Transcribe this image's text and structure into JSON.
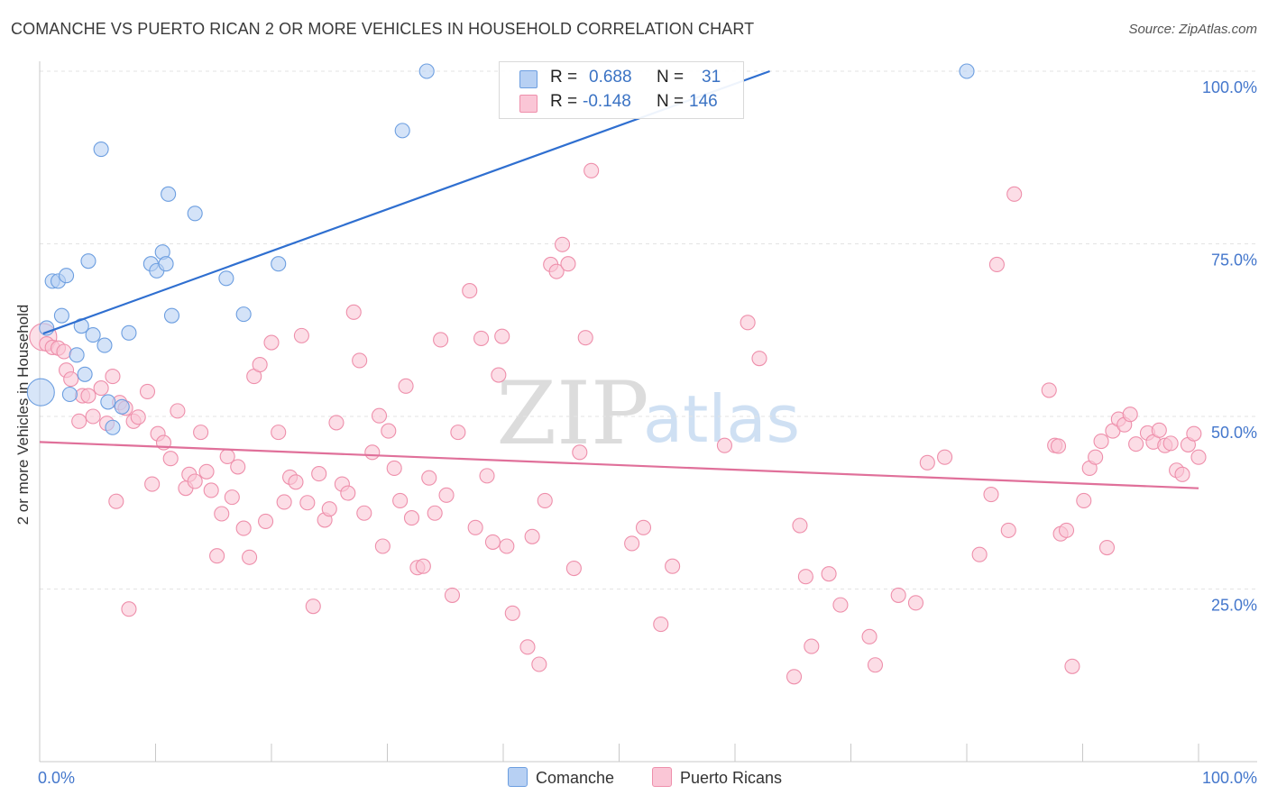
{
  "header": {
    "title": "COMANCHE VS PUERTO RICAN 2 OR MORE VEHICLES IN HOUSEHOLD CORRELATION CHART",
    "source": "Source: ZipAtlas.com"
  },
  "watermark": {
    "zip": "ZIP",
    "atlas": "atlas"
  },
  "stats_box": {
    "rows": [
      {
        "r_label": "R =",
        "r_value": "0.688",
        "n_label": "N =",
        "n_value": "31",
        "color": "#6c9ee0"
      },
      {
        "r_label": "R =",
        "r_value": "-0.148",
        "n_label": "N =",
        "n_value": "146",
        "color": "#ee8fab"
      }
    ]
  },
  "legend": {
    "items": [
      "Comanche",
      "Puerto Ricans"
    ]
  },
  "colors": {
    "comanche_fill": "#b7d0f3",
    "comanche_stroke": "#6c9ee0",
    "comanche_line": "#2f6fd0",
    "pr_fill": "#fac6d6",
    "pr_stroke": "#ee8fab",
    "pr_line": "#e0709a",
    "tick_label": "#4477cc",
    "grid": "#e3e3e3"
  },
  "chart_data": {
    "type": "scatter",
    "title": "COMANCHE VS PUERTO RICAN 2 OR MORE VEHICLES IN HOUSEHOLD CORRELATION CHART",
    "xlabel": "",
    "ylabel": "2 or more Vehicles in Household",
    "xlim": [
      0,
      100
    ],
    "ylim": [
      0,
      100
    ],
    "x_tick_labels": [
      "0.0%",
      "100.0%"
    ],
    "y_ticks": [
      25,
      50,
      75,
      100
    ],
    "y_tick_labels": [
      "25.0%",
      "50.0%",
      "75.0%",
      "100.0%"
    ],
    "grid": true,
    "legend_position": "bottom-center",
    "series": [
      {
        "name": "Comanche",
        "R": 0.688,
        "N": 31,
        "trend": {
          "x": [
            0.3,
            63
          ],
          "y": [
            62,
            100
          ]
        },
        "points": [
          {
            "x": 0.1,
            "y": 53.5,
            "big": true
          },
          {
            "x": 0.6,
            "y": 62.8
          },
          {
            "x": 1.1,
            "y": 69.6
          },
          {
            "x": 1.6,
            "y": 69.6
          },
          {
            "x": 1.9,
            "y": 64.6
          },
          {
            "x": 2.3,
            "y": 70.4
          },
          {
            "x": 2.6,
            "y": 53.2
          },
          {
            "x": 3.2,
            "y": 58.9
          },
          {
            "x": 3.6,
            "y": 63.1
          },
          {
            "x": 3.9,
            "y": 56.1
          },
          {
            "x": 4.2,
            "y": 72.5
          },
          {
            "x": 4.6,
            "y": 61.8
          },
          {
            "x": 5.3,
            "y": 88.7
          },
          {
            "x": 5.6,
            "y": 60.3
          },
          {
            "x": 5.9,
            "y": 52.1
          },
          {
            "x": 6.3,
            "y": 48.4
          },
          {
            "x": 7.1,
            "y": 51.4
          },
          {
            "x": 7.7,
            "y": 62.1
          },
          {
            "x": 9.6,
            "y": 72.1
          },
          {
            "x": 10.1,
            "y": 71.1
          },
          {
            "x": 10.6,
            "y": 73.8
          },
          {
            "x": 10.9,
            "y": 72.1
          },
          {
            "x": 11.1,
            "y": 82.2
          },
          {
            "x": 11.4,
            "y": 64.6
          },
          {
            "x": 13.4,
            "y": 79.4
          },
          {
            "x": 16.1,
            "y": 70.0
          },
          {
            "x": 17.6,
            "y": 64.8
          },
          {
            "x": 20.6,
            "y": 72.1
          },
          {
            "x": 31.3,
            "y": 91.4
          },
          {
            "x": 33.4,
            "y": 100.0
          },
          {
            "x": 80.0,
            "y": 100.0
          }
        ]
      },
      {
        "name": "Puerto Ricans",
        "R": -0.148,
        "N": 146,
        "trend": {
          "x": [
            0,
            100
          ],
          "y": [
            46.3,
            39.6
          ]
        },
        "points": [
          {
            "x": 0.3,
            "y": 61.5,
            "big": true
          },
          {
            "x": 0.6,
            "y": 60.5
          },
          {
            "x": 1.1,
            "y": 60.0
          },
          {
            "x": 1.6,
            "y": 59.9
          },
          {
            "x": 2.1,
            "y": 59.4
          },
          {
            "x": 2.3,
            "y": 56.7
          },
          {
            "x": 2.7,
            "y": 55.4
          },
          {
            "x": 3.4,
            "y": 49.3
          },
          {
            "x": 3.7,
            "y": 53.0
          },
          {
            "x": 4.2,
            "y": 53.0
          },
          {
            "x": 4.6,
            "y": 50.0
          },
          {
            "x": 5.3,
            "y": 54.1
          },
          {
            "x": 5.8,
            "y": 49.0
          },
          {
            "x": 6.3,
            "y": 55.8
          },
          {
            "x": 6.6,
            "y": 37.7
          },
          {
            "x": 6.9,
            "y": 52.0
          },
          {
            "x": 7.4,
            "y": 51.2
          },
          {
            "x": 7.7,
            "y": 22.1
          },
          {
            "x": 8.1,
            "y": 49.3
          },
          {
            "x": 8.5,
            "y": 49.9
          },
          {
            "x": 9.3,
            "y": 53.6
          },
          {
            "x": 9.7,
            "y": 40.2
          },
          {
            "x": 10.2,
            "y": 47.5
          },
          {
            "x": 10.7,
            "y": 46.2
          },
          {
            "x": 11.3,
            "y": 43.9
          },
          {
            "x": 11.9,
            "y": 50.8
          },
          {
            "x": 12.6,
            "y": 39.6
          },
          {
            "x": 12.9,
            "y": 41.6
          },
          {
            "x": 13.4,
            "y": 40.6
          },
          {
            "x": 13.9,
            "y": 47.7
          },
          {
            "x": 14.4,
            "y": 42.0
          },
          {
            "x": 14.8,
            "y": 39.3
          },
          {
            "x": 15.3,
            "y": 29.8
          },
          {
            "x": 15.7,
            "y": 35.9
          },
          {
            "x": 16.2,
            "y": 44.2
          },
          {
            "x": 16.6,
            "y": 38.3
          },
          {
            "x": 17.1,
            "y": 42.7
          },
          {
            "x": 17.6,
            "y": 33.8
          },
          {
            "x": 18.1,
            "y": 29.6
          },
          {
            "x": 18.5,
            "y": 55.8
          },
          {
            "x": 19.0,
            "y": 57.5
          },
          {
            "x": 19.5,
            "y": 34.8
          },
          {
            "x": 20.0,
            "y": 60.7
          },
          {
            "x": 20.6,
            "y": 47.7
          },
          {
            "x": 21.1,
            "y": 37.6
          },
          {
            "x": 21.6,
            "y": 41.2
          },
          {
            "x": 22.1,
            "y": 40.5
          },
          {
            "x": 22.6,
            "y": 61.7
          },
          {
            "x": 23.1,
            "y": 37.5
          },
          {
            "x": 23.6,
            "y": 22.5
          },
          {
            "x": 24.1,
            "y": 41.7
          },
          {
            "x": 24.6,
            "y": 35.0
          },
          {
            "x": 25.0,
            "y": 36.6
          },
          {
            "x": 25.6,
            "y": 49.1
          },
          {
            "x": 26.1,
            "y": 40.2
          },
          {
            "x": 26.6,
            "y": 38.9
          },
          {
            "x": 27.1,
            "y": 65.1
          },
          {
            "x": 27.6,
            "y": 58.1
          },
          {
            "x": 28.0,
            "y": 36.0
          },
          {
            "x": 28.7,
            "y": 44.8
          },
          {
            "x": 29.3,
            "y": 50.1
          },
          {
            "x": 29.6,
            "y": 31.2
          },
          {
            "x": 30.1,
            "y": 47.9
          },
          {
            "x": 30.6,
            "y": 42.5
          },
          {
            "x": 31.1,
            "y": 37.8
          },
          {
            "x": 31.6,
            "y": 54.4
          },
          {
            "x": 32.1,
            "y": 35.3
          },
          {
            "x": 32.6,
            "y": 28.1
          },
          {
            "x": 33.1,
            "y": 28.3
          },
          {
            "x": 33.6,
            "y": 41.1
          },
          {
            "x": 34.1,
            "y": 36.0
          },
          {
            "x": 34.6,
            "y": 61.1
          },
          {
            "x": 35.1,
            "y": 38.6
          },
          {
            "x": 35.6,
            "y": 24.1
          },
          {
            "x": 36.1,
            "y": 47.7
          },
          {
            "x": 37.1,
            "y": 68.2
          },
          {
            "x": 37.6,
            "y": 33.9
          },
          {
            "x": 38.1,
            "y": 61.3
          },
          {
            "x": 38.6,
            "y": 41.4
          },
          {
            "x": 39.1,
            "y": 31.8
          },
          {
            "x": 39.6,
            "y": 56.0
          },
          {
            "x": 39.9,
            "y": 61.6
          },
          {
            "x": 40.3,
            "y": 31.2
          },
          {
            "x": 40.8,
            "y": 21.5
          },
          {
            "x": 42.1,
            "y": 16.6
          },
          {
            "x": 42.5,
            "y": 32.6
          },
          {
            "x": 43.1,
            "y": 14.1
          },
          {
            "x": 43.6,
            "y": 37.8
          },
          {
            "x": 44.1,
            "y": 72.0
          },
          {
            "x": 44.6,
            "y": 71.0
          },
          {
            "x": 45.1,
            "y": 74.9
          },
          {
            "x": 45.6,
            "y": 72.1
          },
          {
            "x": 46.1,
            "y": 28.0
          },
          {
            "x": 46.6,
            "y": 44.8
          },
          {
            "x": 47.1,
            "y": 61.4
          },
          {
            "x": 47.6,
            "y": 85.6
          },
          {
            "x": 51.1,
            "y": 31.6
          },
          {
            "x": 52.1,
            "y": 33.9
          },
          {
            "x": 53.6,
            "y": 19.9
          },
          {
            "x": 54.6,
            "y": 28.3
          },
          {
            "x": 59.1,
            "y": 45.8
          },
          {
            "x": 61.1,
            "y": 63.6
          },
          {
            "x": 62.1,
            "y": 58.4
          },
          {
            "x": 65.1,
            "y": 12.3
          },
          {
            "x": 65.6,
            "y": 34.2
          },
          {
            "x": 66.1,
            "y": 26.8
          },
          {
            "x": 66.6,
            "y": 16.7
          },
          {
            "x": 68.1,
            "y": 27.2
          },
          {
            "x": 69.1,
            "y": 22.7
          },
          {
            "x": 71.6,
            "y": 18.1
          },
          {
            "x": 72.1,
            "y": 14.0
          },
          {
            "x": 74.1,
            "y": 24.1
          },
          {
            "x": 75.6,
            "y": 23.0
          },
          {
            "x": 76.6,
            "y": 43.3
          },
          {
            "x": 78.1,
            "y": 44.1
          },
          {
            "x": 81.1,
            "y": 30.0
          },
          {
            "x": 82.1,
            "y": 38.7
          },
          {
            "x": 82.6,
            "y": 72.0
          },
          {
            "x": 83.6,
            "y": 33.5
          },
          {
            "x": 84.1,
            "y": 82.2
          },
          {
            "x": 87.1,
            "y": 53.8
          },
          {
            "x": 87.6,
            "y": 45.8
          },
          {
            "x": 88.1,
            "y": 33.0
          },
          {
            "x": 88.6,
            "y": 33.5
          },
          {
            "x": 89.1,
            "y": 13.8
          },
          {
            "x": 90.1,
            "y": 37.8
          },
          {
            "x": 90.6,
            "y": 42.5
          },
          {
            "x": 91.1,
            "y": 44.1
          },
          {
            "x": 91.6,
            "y": 46.4
          },
          {
            "x": 92.1,
            "y": 31.0
          },
          {
            "x": 92.6,
            "y": 47.9
          },
          {
            "x": 93.1,
            "y": 49.6
          },
          {
            "x": 93.6,
            "y": 48.8
          },
          {
            "x": 94.1,
            "y": 50.3
          },
          {
            "x": 94.6,
            "y": 46.0
          },
          {
            "x": 95.6,
            "y": 47.6
          },
          {
            "x": 96.1,
            "y": 46.3
          },
          {
            "x": 96.6,
            "y": 48.0
          },
          {
            "x": 97.1,
            "y": 45.8
          },
          {
            "x": 97.6,
            "y": 46.1
          },
          {
            "x": 98.1,
            "y": 42.2
          },
          {
            "x": 98.6,
            "y": 41.6
          },
          {
            "x": 99.1,
            "y": 45.9
          },
          {
            "x": 99.6,
            "y": 47.5
          },
          {
            "x": 100.0,
            "y": 44.1
          },
          {
            "x": 87.9,
            "y": 45.7
          }
        ]
      }
    ]
  }
}
